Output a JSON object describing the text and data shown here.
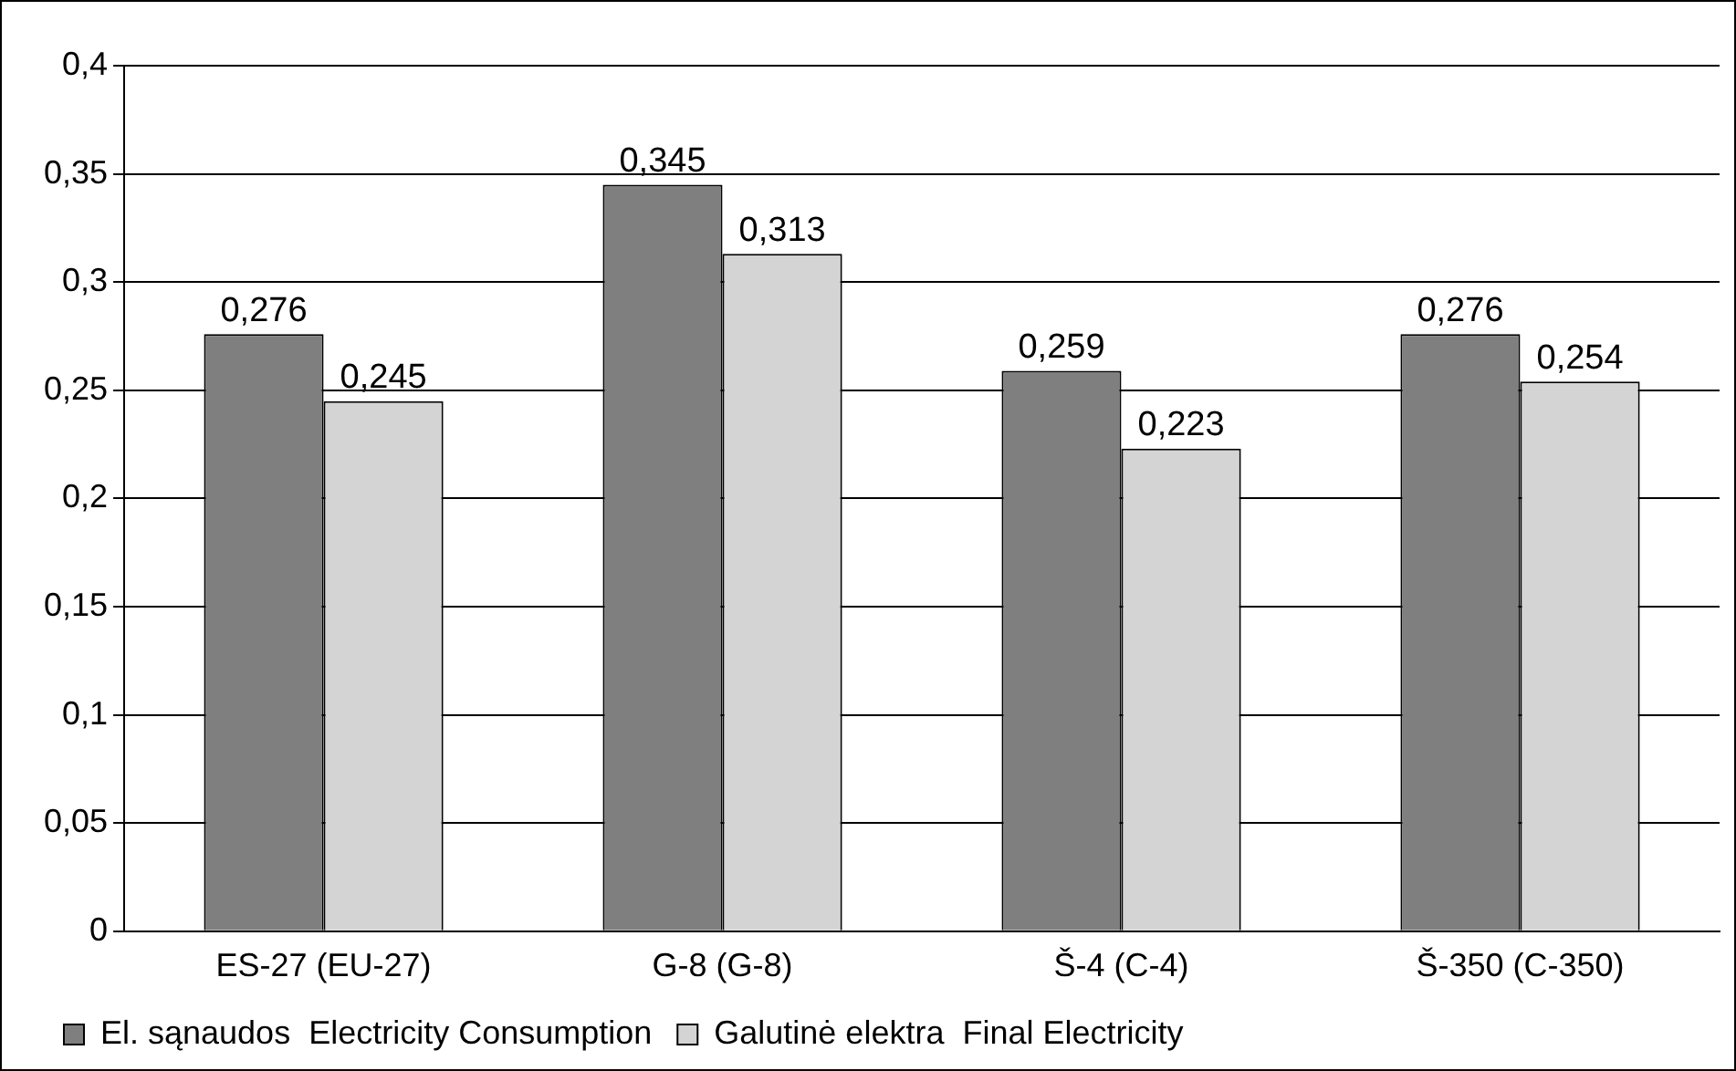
{
  "chart_data": {
    "type": "bar",
    "categories": [
      "ES-27 (EU-27)",
      "G-8 (G-8)",
      "Š-4 (C-4)",
      "Š-350 (C-350)"
    ],
    "series": [
      {
        "name": "El. sąnaudos  Electricity Consumption",
        "color": "#7f7f7f",
        "values": [
          0.276,
          0.345,
          0.259,
          0.276
        ],
        "value_labels": [
          "0,276",
          "0,345",
          "0,259",
          "0,276"
        ]
      },
      {
        "name": "Galutinė elektra  Final Electricity",
        "color": "#d4d4d4",
        "values": [
          0.245,
          0.313,
          0.223,
          0.254
        ],
        "value_labels": [
          "0,245",
          "0,313",
          "0,223",
          "0,254"
        ]
      }
    ],
    "ylim": [
      0,
      0.4
    ],
    "yticks": [
      {
        "value": 0,
        "label": "0"
      },
      {
        "value": 0.05,
        "label": "0,05"
      },
      {
        "value": 0.1,
        "label": "0,1"
      },
      {
        "value": 0.15,
        "label": "0,15"
      },
      {
        "value": 0.2,
        "label": "0,2"
      },
      {
        "value": 0.25,
        "label": "0,25"
      },
      {
        "value": 0.3,
        "label": "0,3"
      },
      {
        "value": 0.35,
        "label": "0,35"
      },
      {
        "value": 0.4,
        "label": "0,4"
      }
    ],
    "grid": "y",
    "legend": "bottom"
  }
}
